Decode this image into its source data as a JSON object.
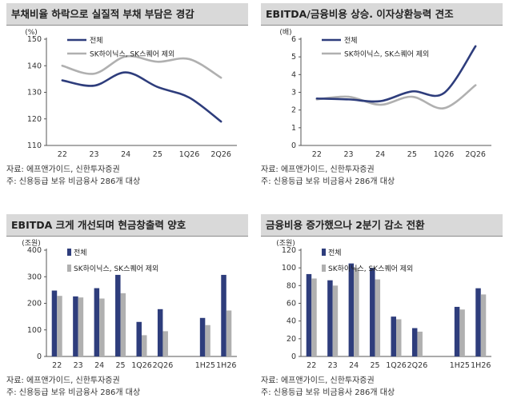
{
  "colors": {
    "series1": "#2e3d7c",
    "series2": "#b0b0b0"
  },
  "charts": [
    {
      "title": "부채비율 하락으로 실질적 부채 부담은 경감",
      "source": "자료: 에프앤가이드, 신한투자증권",
      "note": "주: 신용등급 보유 비금융사 286개 대상"
    },
    {
      "title": "EBITDA/금융비용 상승. 이자상환능력 견조",
      "source": "자료: 에프앤가이드, 신한투자증권",
      "note": "주: 신용등급 보유 비금융사 286개 대상"
    },
    {
      "title": "EBITDA 크게 개선되며 현금창출력 양호",
      "source": "자료: 에프앤가이드, 신한투자증권",
      "note": "주: 신용등급 보유 비금융사 286개 대상"
    },
    {
      "title": "금융비용 증가했으나 2분기 감소 전환",
      "source": "자료: 에프앤가이드, 신한투자증권",
      "note": "주: 신용등급 보유 비금융사 286개 대상"
    }
  ],
  "chart_data": [
    {
      "type": "line",
      "unit": "(%)",
      "categories": [
        "22",
        "23",
        "24",
        "25",
        "1Q26",
        "2Q26"
      ],
      "ylim": [
        110,
        150
      ],
      "yticks": [
        110,
        120,
        130,
        140,
        150
      ],
      "legend": "top-left",
      "series": [
        {
          "name": "전체",
          "values": [
            134.5,
            132.5,
            137.5,
            132,
            128,
            119
          ]
        },
        {
          "name": "SK하이닉스, SK스퀘어 제외",
          "values": [
            140,
            137,
            143.5,
            141.5,
            142.5,
            135.5
          ]
        }
      ]
    },
    {
      "type": "line",
      "unit": "(배)",
      "categories": [
        "22",
        "23",
        "24",
        "25",
        "1Q26",
        "2Q26"
      ],
      "ylim": [
        0,
        6
      ],
      "yticks": [
        0,
        1,
        2,
        3,
        4,
        5,
        6
      ],
      "legend": "top-left",
      "series": [
        {
          "name": "전체",
          "values": [
            2.65,
            2.6,
            2.5,
            3.05,
            2.95,
            5.6
          ]
        },
        {
          "name": "SK하이닉스, SK스퀘어 제외",
          "values": [
            2.6,
            2.75,
            2.3,
            2.75,
            2.1,
            3.4
          ]
        }
      ]
    },
    {
      "type": "bar",
      "unit": "(조원)",
      "categories": [
        "22",
        "23",
        "24",
        "25",
        "1Q26",
        "2Q26",
        "1H25",
        "1H26"
      ],
      "gap_after_index": 5,
      "ylim": [
        0,
        400
      ],
      "yticks": [
        0,
        100,
        200,
        300,
        400
      ],
      "legend": "top-left",
      "series": [
        {
          "name": "전체",
          "values": [
            248,
            226,
            257,
            307,
            130,
            178,
            145,
            307
          ]
        },
        {
          "name": "SK하이닉스, SK스퀘어 제외",
          "values": [
            228,
            222,
            218,
            238,
            80,
            95,
            118,
            173
          ]
        }
      ]
    },
    {
      "type": "bar",
      "unit": "(조원)",
      "categories": [
        "22",
        "23",
        "24",
        "25",
        "1Q26",
        "2Q26",
        "1H25",
        "1H26"
      ],
      "gap_after_index": 5,
      "ylim": [
        0,
        120
      ],
      "yticks": [
        0,
        20,
        40,
        60,
        80,
        100,
        120
      ],
      "legend": "top-left",
      "series": [
        {
          "name": "전체",
          "values": [
            93,
            86,
            105,
            100,
            45,
            32,
            56,
            77
          ]
        },
        {
          "name": "SK하이닉스, SK스퀘어 제외",
          "values": [
            88,
            80,
            100,
            87,
            42,
            28,
            53,
            70
          ]
        }
      ]
    }
  ]
}
